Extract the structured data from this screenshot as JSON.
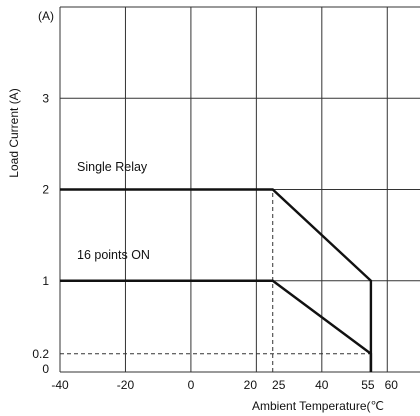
{
  "chart_data": {
    "type": "line",
    "xlabel": "Ambient Temperature(℃",
    "ylabel": "Load Current (A)",
    "y_unit": "(A)",
    "xlim": [
      -40,
      70
    ],
    "ylim": [
      0,
      4
    ],
    "x_ticks": [
      -40,
      -20,
      0,
      20,
      25,
      40,
      55,
      60
    ],
    "y_ticks": [
      0,
      0.2,
      1,
      2,
      3
    ],
    "grid_x": [
      -40,
      -20,
      0,
      20,
      40,
      60
    ],
    "grid_y": [
      0,
      1,
      2,
      3
    ],
    "series": [
      {
        "name": "Single Relay",
        "x": [
          -40,
          25,
          55,
          55
        ],
        "y": [
          2,
          2,
          1,
          0
        ]
      },
      {
        "name": "16 points ON",
        "x": [
          -40,
          25,
          55,
          55
        ],
        "y": [
          1,
          1,
          0.2,
          0
        ]
      }
    ],
    "reference_lines": [
      {
        "axis": "x",
        "value": 25,
        "from": 0,
        "to": 2
      },
      {
        "axis": "y",
        "value": 0.2,
        "from": -40,
        "to": 55
      }
    ],
    "colors": {
      "series": "#111111",
      "grid": "#333333",
      "dashed": "#333333"
    }
  }
}
